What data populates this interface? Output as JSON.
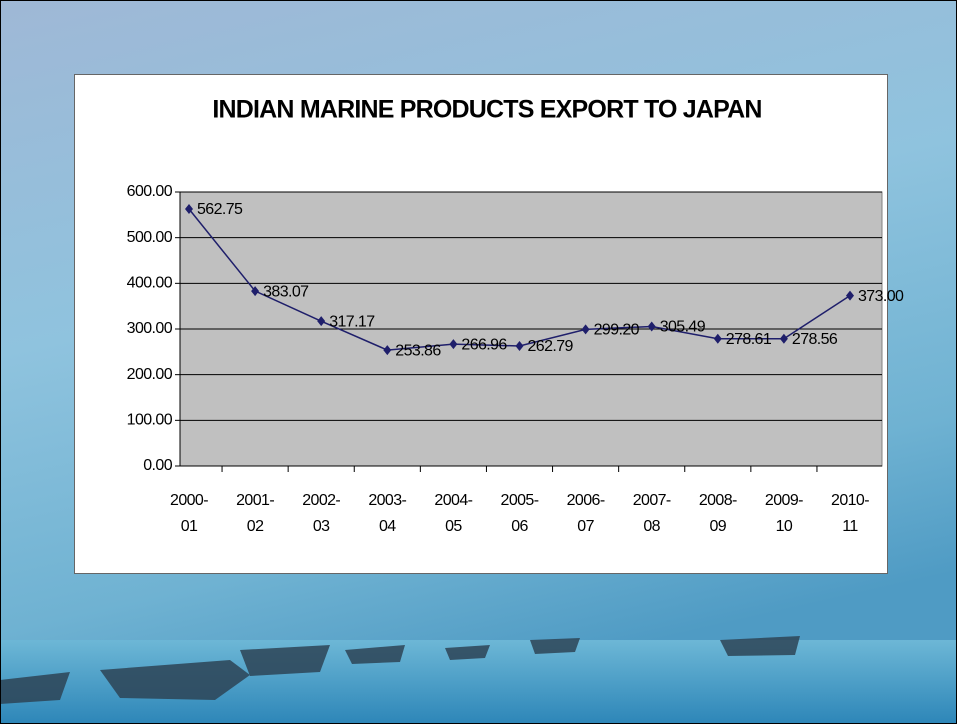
{
  "chart_data": {
    "type": "line",
    "title": "INDIAN MARINE PRODUCTS EXPORT TO JAPAN",
    "categories": [
      "2000-01",
      "2001-02",
      "2002-03",
      "2003-04",
      "2004-05",
      "2005-06",
      "2006-07",
      "2007-08",
      "2008-09",
      "2009-10",
      "2010-11"
    ],
    "series": [
      {
        "name": null,
        "color": "#1f1f6b",
        "values": [
          562.75,
          383.07,
          317.17,
          253.86,
          266.96,
          262.79,
          299.2,
          305.49,
          278.61,
          278.56,
          373.0
        ],
        "value_labels": [
          "562.75",
          "383.07",
          "317.17",
          "253.86",
          "266.96",
          "262.79",
          "299.20",
          "305.49",
          "278.61",
          "278.56",
          "373.00"
        ]
      }
    ],
    "ylim": [
      0,
      600
    ],
    "yticks": [
      {
        "value": 0,
        "label": "0.00"
      },
      {
        "value": 100,
        "label": "100.00"
      },
      {
        "value": 200,
        "label": "200.00"
      },
      {
        "value": 300,
        "label": "300.00"
      },
      {
        "value": 400,
        "label": "400.00"
      },
      {
        "value": 500,
        "label": "500.00"
      },
      {
        "value": 600,
        "label": "600.00"
      }
    ],
    "grid": true,
    "plot_background": "#c0c0c0"
  }
}
